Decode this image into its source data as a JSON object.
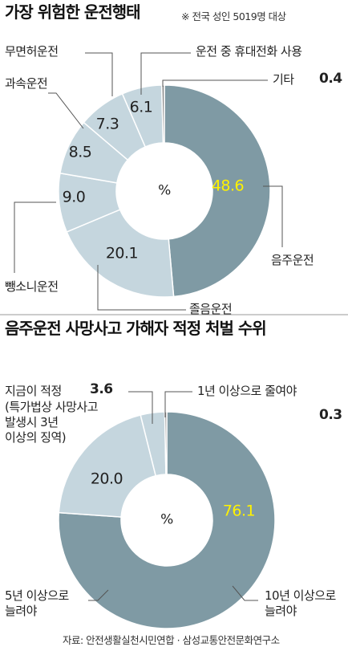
{
  "chart_data": [
    {
      "type": "donut",
      "title": "가장 위험한 운전행태",
      "subtitle": "※ 전국 성인 5019명 대상",
      "center_label": "%",
      "categories": [
        "음주운전",
        "졸음운전",
        "뺑소니운전",
        "과속운전",
        "무면허운전",
        "운전 중 휴대전화 사용",
        "기타"
      ],
      "values": [
        48.6,
        20.1,
        9.0,
        8.5,
        7.3,
        6.1,
        0.4
      ],
      "value_labels": [
        "48.6",
        "20.1",
        "9.0",
        "8.5",
        "7.3",
        "6.1",
        "0.4"
      ],
      "colors": [
        "#7f9aa4",
        "#c5d6de",
        "#c5d6de",
        "#c5d6de",
        "#c5d6de",
        "#c5d6de",
        "#8c8c8c"
      ]
    },
    {
      "type": "donut",
      "title": "음주운전 사망사고 가해자 적정 처벌 수위",
      "center_label": "%",
      "categories": [
        "10년 이상으로\n늘려야",
        "5년 이상으로\n늘려야",
        "지금이 적정",
        "1년 이상으로 줄여야"
      ],
      "note": "(특가법상 사망사고\n발생시 3년\n이상의 징역)",
      "values": [
        76.1,
        20.0,
        3.6,
        0.3
      ],
      "value_labels": [
        "76.1",
        "20.0",
        "3.6",
        "0.3"
      ],
      "colors": [
        "#7f9aa4",
        "#c5d6de",
        "#c5d6de",
        "#8c8c8c"
      ]
    }
  ],
  "source": "자료: 안전생활실천시민연합 · 삼성교통안전문화연구소"
}
